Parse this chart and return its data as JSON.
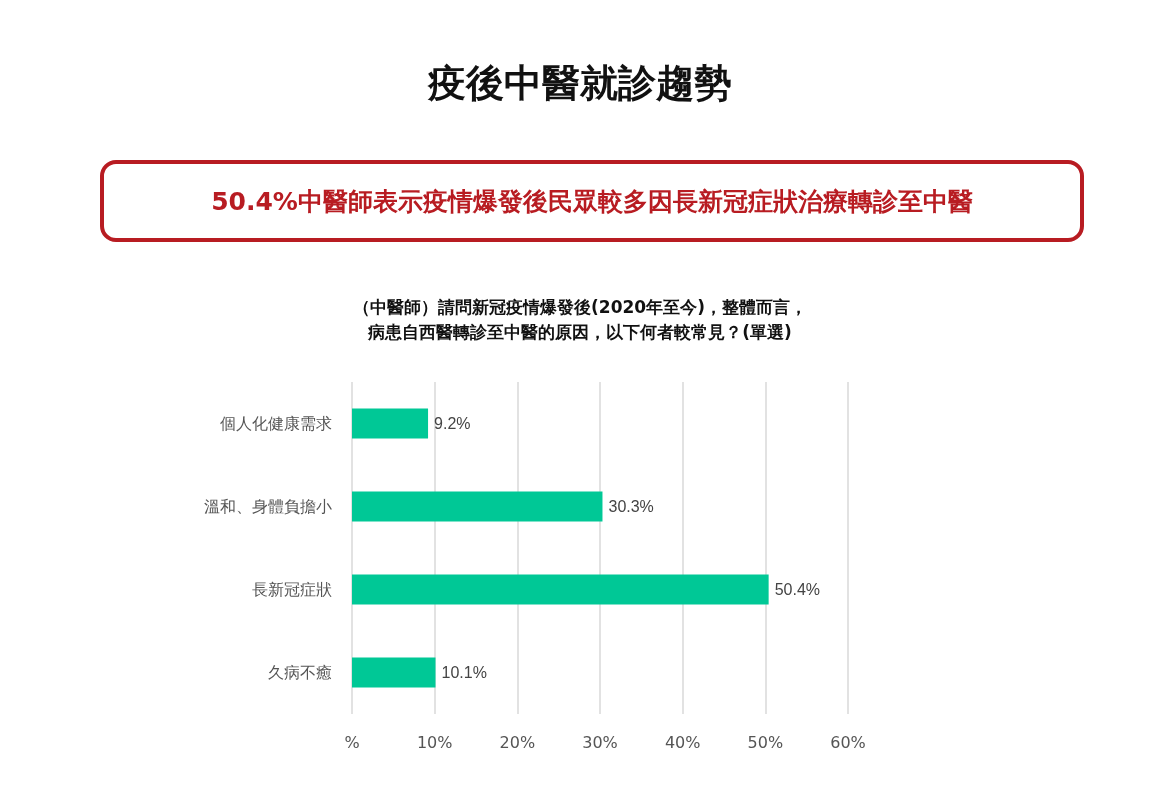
{
  "chart_data": {
    "type": "bar",
    "orientation": "horizontal",
    "title": "疫後中醫就診趨勢",
    "subtitle": "50.4%中醫師表示疫情爆發後民眾較多因長新冠症狀治療轉診至中醫",
    "annotations": [
      "（中醫師）請問新冠疫情爆發後(2020年至今)，整體而言，",
      "病患自西醫轉診至中醫的原因，以下何者較常見？(單選)"
    ],
    "categories": [
      "個人化健康需求",
      "溫和、身體負擔小",
      "長新冠症狀",
      "久病不癒"
    ],
    "values": [
      9.2,
      30.3,
      50.4,
      10.1
    ],
    "value_labels": [
      "9.2%",
      "30.3%",
      "50.4%",
      "10.1%"
    ],
    "color": "#00c896",
    "xlim": [
      0,
      60
    ],
    "xticks": [
      {
        "value": 0,
        "label": "%"
      },
      {
        "value": 10,
        "label": "10%"
      },
      {
        "value": 20,
        "label": "20%"
      },
      {
        "value": 30,
        "label": "30%"
      },
      {
        "value": 40,
        "label": "40%"
      },
      {
        "value": 50,
        "label": "50%"
      },
      {
        "value": 60,
        "label": "60%"
      }
    ],
    "grid": "x"
  }
}
